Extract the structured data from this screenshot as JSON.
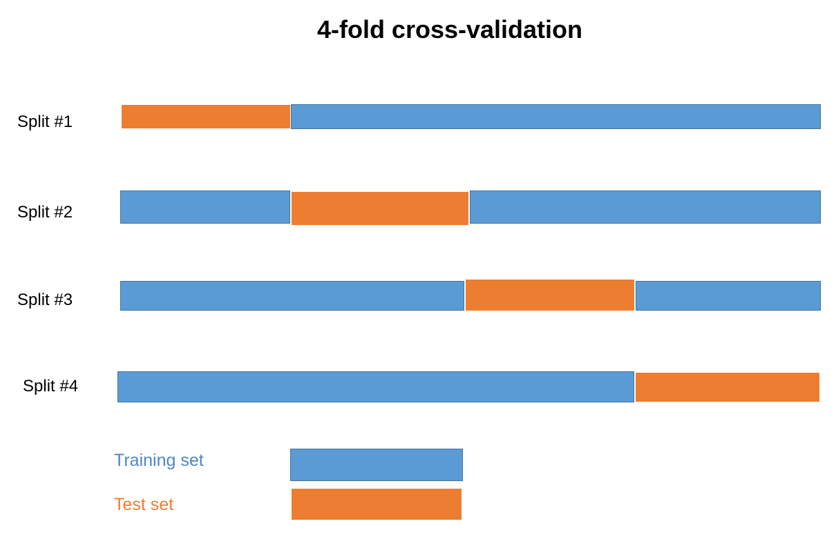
{
  "title": "4-fold cross-validation",
  "colors": {
    "training": "#5b9bd5",
    "training_border": "#41719c",
    "test": "#ed7d31"
  },
  "splits": [
    {
      "label": "Split #1",
      "test_fold": 1
    },
    {
      "label": "Split #2",
      "test_fold": 2
    },
    {
      "label": "Split #3",
      "test_fold": 3
    },
    {
      "label": "Split #4",
      "test_fold": 4
    }
  ],
  "legend": {
    "training_label": "Training set",
    "test_label": "Test set"
  }
}
